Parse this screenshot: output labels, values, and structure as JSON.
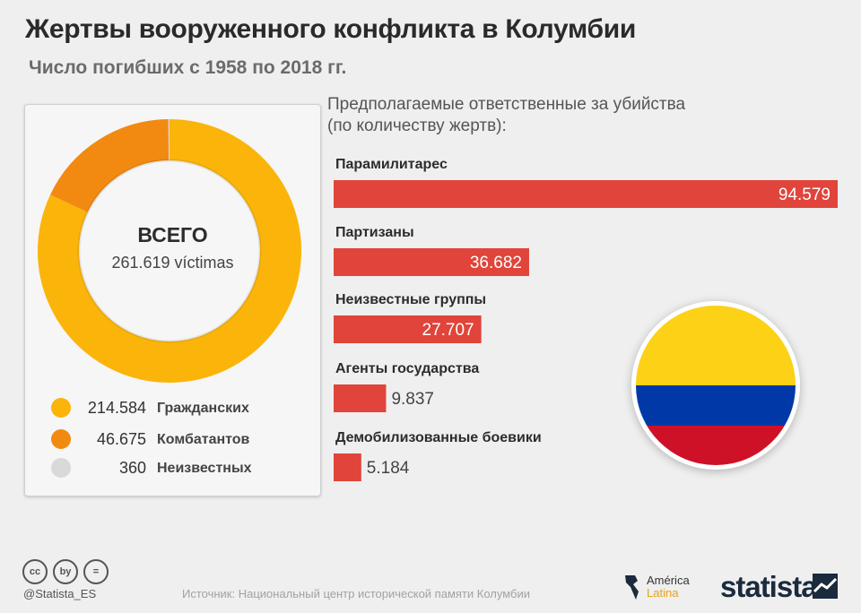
{
  "title": "Жертвы вооруженного конфликта в Колумбии",
  "subtitle": "Число погибших с 1958 по 2018 гг.",
  "colors": {
    "civilians": "#fbb40a",
    "combatants": "#f28a12",
    "unknown": "#d9d9d9",
    "bars": "#e0443a",
    "flag_yellow": "#fcd116",
    "flag_blue": "#0038a8",
    "flag_red": "#ce1126"
  },
  "donut": {
    "total_label": "ВСЕГО",
    "total_value": "261.619 víctimas",
    "legend": [
      {
        "value": "214.584",
        "label": "Гражданских",
        "color_key": "civilians"
      },
      {
        "value": "46.675",
        "label": "Комбатантов",
        "color_key": "combatants"
      },
      {
        "value": "360",
        "label": "Неизвестных",
        "color_key": "unknown"
      }
    ]
  },
  "bars_heading": {
    "line1": "Предполагаемые ответственные за убийства",
    "line2": "(по количеству жертв):"
  },
  "chart_data": [
    {
      "type": "pie",
      "categories": [
        "Гражданских",
        "Комбатантов",
        "Неизвестных"
      ],
      "values": [
        214584,
        46675,
        360
      ],
      "title": "ВСЕГО",
      "total": 261619
    },
    {
      "type": "bar",
      "orientation": "horizontal",
      "title": "Предполагаемые ответственные за убийства (по количеству жертв):",
      "categories": [
        "Парамилитарес",
        "Партизаны",
        "Неизвестные группы",
        "Агенты государства",
        "Демобилизованные боевики"
      ],
      "values": [
        94579,
        36682,
        27707,
        9837,
        5184
      ],
      "value_labels": [
        "94.579",
        "36.682",
        "27.707",
        "9.837",
        "5.184"
      ]
    }
  ],
  "footer": {
    "handle": "@Statista_ES",
    "source": "Источник: Национальный центр исторической памяти Колумбии",
    "logo_al_1": "América",
    "logo_al_2": "Latina",
    "brand": "statista",
    "cc_icons": [
      "cc",
      "by",
      "="
    ]
  }
}
